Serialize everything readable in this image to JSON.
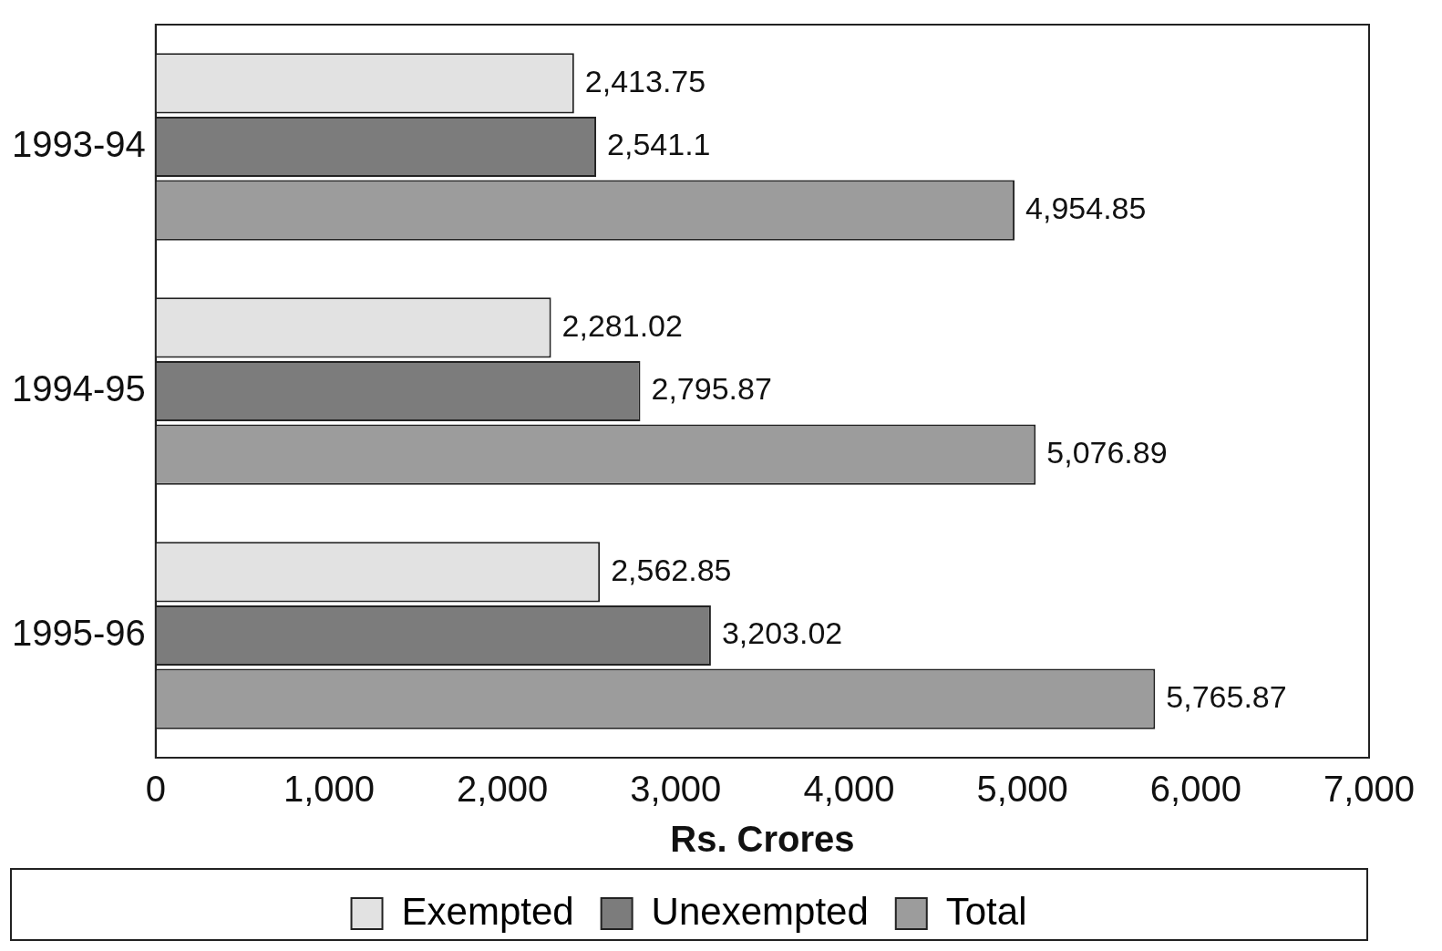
{
  "chart_data": {
    "type": "bar",
    "orientation": "horizontal",
    "xlabel": "Rs. Crores",
    "categories": [
      "1993-94",
      "1994-95",
      "1995-96"
    ],
    "series": [
      {
        "name": "Exempted",
        "color": "#e2e2e2",
        "values": [
          2413.75,
          2281.02,
          2562.85
        ],
        "value_labels": [
          "2,413.75",
          "2,281.02",
          "2,562.85"
        ]
      },
      {
        "name": "Unexempted",
        "color": "#7c7c7c",
        "values": [
          2541.1,
          2795.87,
          3203.02
        ],
        "value_labels": [
          "2,541.1",
          "2,795.87",
          "3,203.02"
        ]
      },
      {
        "name": "Total",
        "color": "#9c9c9c",
        "values": [
          4954.85,
          5076.89,
          5765.87
        ],
        "value_labels": [
          "4,954.85",
          "5,076.89",
          "5,765.87"
        ]
      }
    ],
    "xlim": [
      0,
      7000
    ],
    "xticks": [
      0,
      {
        "value": 1000,
        "label": "1,000"
      },
      {
        "value": 2000,
        "label": "2,000"
      },
      {
        "value": 3000,
        "label": "3,000"
      },
      {
        "value": 4000,
        "label": "4,000"
      },
      {
        "value": 5000,
        "label": "5,000"
      },
      {
        "value": 6000,
        "label": "6,000"
      },
      {
        "value": 7000,
        "label": "7,000"
      }
    ],
    "grid": false,
    "legend": "bottom"
  }
}
